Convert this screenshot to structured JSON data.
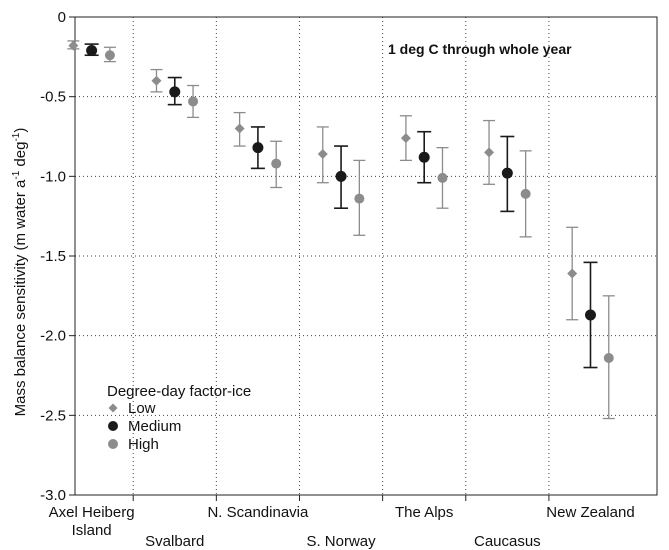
{
  "chart_data": {
    "type": "scatter",
    "annotation": "1 deg C through whole year",
    "ylabel": "Mass balance sensitivity (m water a",
    "ylabel_sup1": "-1",
    "ylabel_mid": " deg",
    "ylabel_sup2": "-1",
    "ylabel_end": ")",
    "ylim": [
      -3.0,
      0
    ],
    "yticks": [
      0,
      -0.5,
      -1.0,
      -1.5,
      -2.0,
      -2.5,
      -3.0
    ],
    "ytick_labels": [
      "0",
      "-0.5",
      "-1.0",
      "-1.5",
      "-2.0",
      "-2.5",
      "-3.0"
    ],
    "grid": "dotted",
    "legend": {
      "title": "Degree-day factor-ice",
      "placement": "bottom-left"
    },
    "categories": [
      {
        "name": "Axel Heiberg",
        "name2": "Island",
        "row": "upper"
      },
      {
        "name": "Svalbard",
        "name2": "",
        "row": "lower"
      },
      {
        "name": "N. Scandinavia",
        "name2": "",
        "row": "upper"
      },
      {
        "name": "S. Norway",
        "name2": "",
        "row": "lower"
      },
      {
        "name": "The Alps",
        "name2": "",
        "row": "upper"
      },
      {
        "name": "Caucasus",
        "name2": "",
        "row": "lower"
      },
      {
        "name": "New Zealand",
        "name2": "",
        "row": "upper"
      }
    ],
    "series": [
      {
        "name": "Low",
        "marker": "diamond",
        "color": "#8c8c8c",
        "values": [
          -0.18,
          -0.4,
          -0.7,
          -0.86,
          -0.76,
          -0.85,
          -1.61
        ],
        "err_low": [
          -0.2,
          -0.47,
          -0.81,
          -1.04,
          -0.9,
          -1.05,
          -1.9
        ],
        "err_high": [
          -0.15,
          -0.33,
          -0.6,
          -0.69,
          -0.62,
          -0.65,
          -1.32
        ]
      },
      {
        "name": "Medium",
        "marker": "circle",
        "color": "#1a1a1a",
        "values": [
          -0.21,
          -0.47,
          -0.82,
          -1.0,
          -0.88,
          -0.98,
          -1.87
        ],
        "err_low": [
          -0.24,
          -0.55,
          -0.95,
          -1.2,
          -1.04,
          -1.22,
          -2.2
        ],
        "err_high": [
          -0.17,
          -0.38,
          -0.69,
          -0.81,
          -0.72,
          -0.75,
          -1.54
        ]
      },
      {
        "name": "High",
        "marker": "circle",
        "color": "#8c8c8c",
        "values": [
          -0.24,
          -0.53,
          -0.92,
          -1.14,
          -1.01,
          -1.11,
          -2.14
        ],
        "err_low": [
          -0.28,
          -0.63,
          -1.07,
          -1.37,
          -1.2,
          -1.38,
          -2.52
        ],
        "err_high": [
          -0.19,
          -0.43,
          -0.78,
          -0.9,
          -0.82,
          -0.84,
          -1.75
        ]
      }
    ]
  }
}
